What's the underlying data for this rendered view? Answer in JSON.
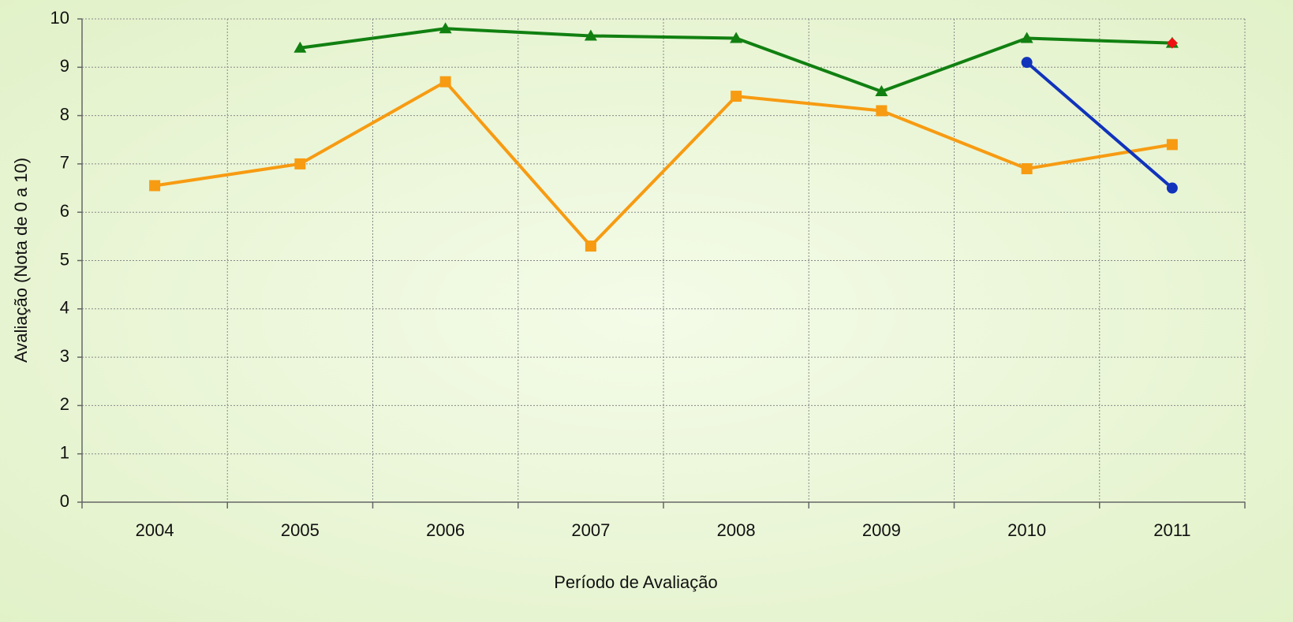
{
  "chart_data": {
    "type": "line",
    "x_label": "Período de Avaliação",
    "y_label": "Avaliação (Nota de 0 a 10)",
    "categories": [
      "2004",
      "2005",
      "2006",
      "2007",
      "2008",
      "2009",
      "2010",
      "2011"
    ],
    "series": [
      {
        "color": "#f79b12",
        "marker": "square",
        "values": [
          6.55,
          7.0,
          8.7,
          5.3,
          8.4,
          8.1,
          6.9,
          7.4
        ]
      },
      {
        "color": "#118011",
        "marker": "triangle",
        "values": [
          null,
          9.4,
          9.8,
          9.65,
          9.6,
          8.5,
          9.6,
          9.5
        ]
      },
      {
        "color": "#1133bb",
        "marker": "circle",
        "values": [
          null,
          null,
          null,
          null,
          null,
          null,
          9.1,
          6.5
        ]
      },
      {
        "color": "#ee1111",
        "marker": "diamond",
        "values": [
          null,
          null,
          null,
          null,
          null,
          null,
          null,
          9.5
        ]
      }
    ],
    "ylim": [
      0,
      10
    ],
    "yticks": [
      0,
      1,
      2,
      3,
      4,
      5,
      6,
      7,
      8,
      9,
      10
    ],
    "grid": true
  }
}
